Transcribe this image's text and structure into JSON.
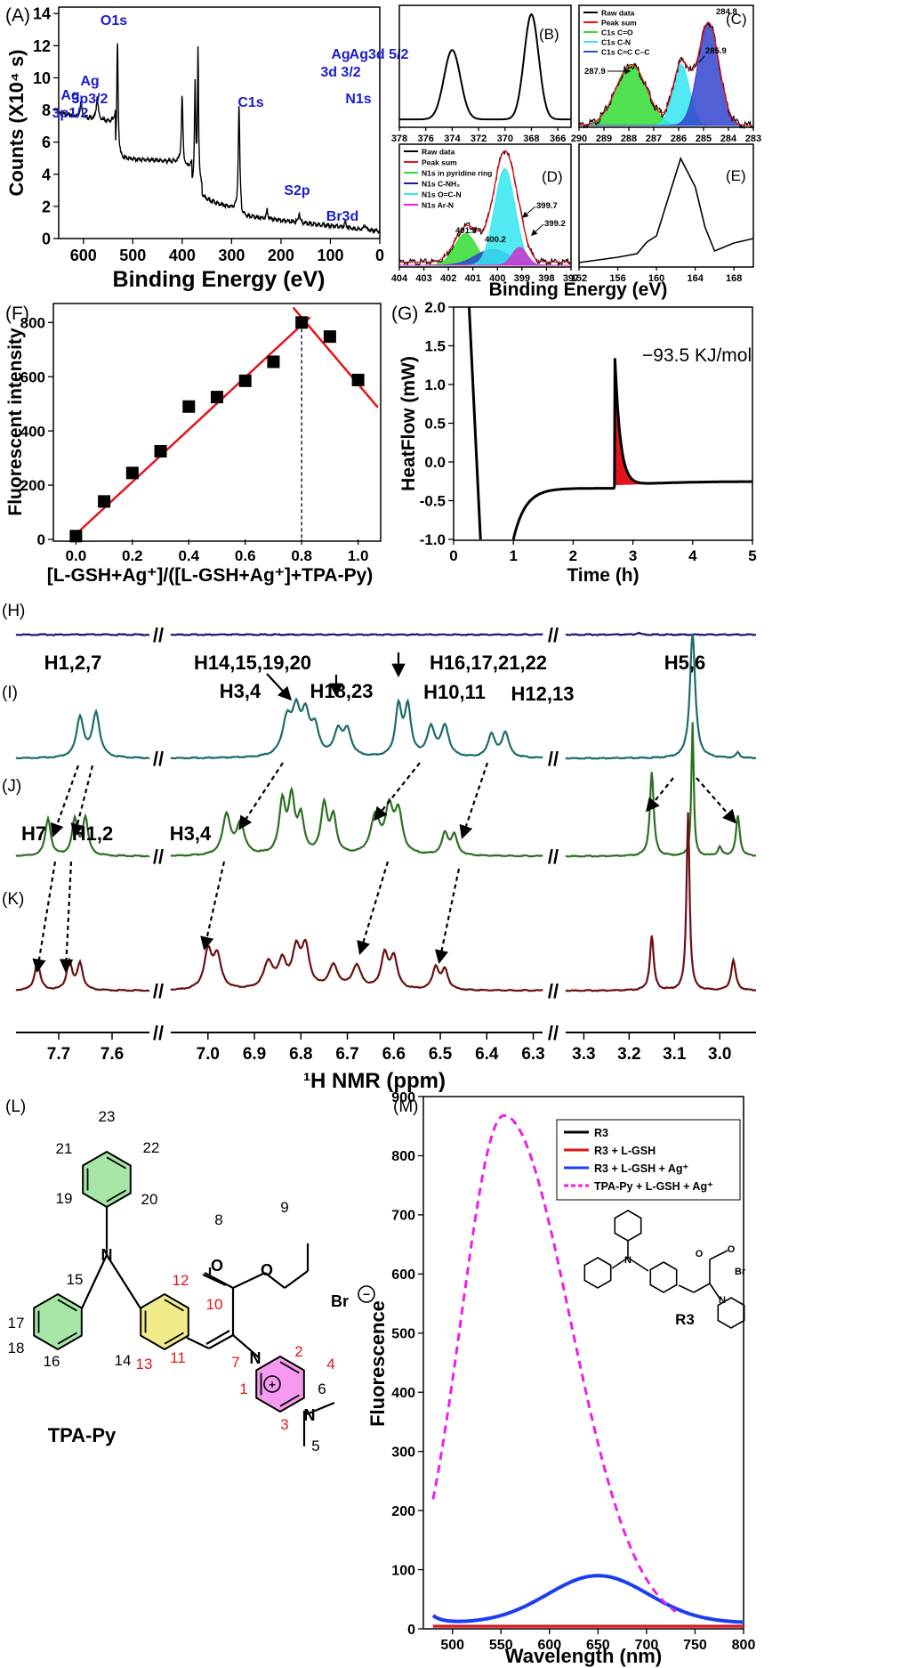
{
  "panel_labels": {
    "A": "(A)",
    "B": "(B)",
    "C": "(C)",
    "D": "(D)",
    "E": "(E)",
    "F": "(F)",
    "G": "(G)",
    "H": "(H)",
    "I": "(I)",
    "J": "(J)",
    "K": "(K)",
    "L": "(L)",
    "M": "(M)"
  },
  "colors": {
    "blue_label": "#1c1ccc",
    "red": "#e3141b",
    "teal": "#1d6b6b",
    "green": "#2c6f22",
    "maroon": "#6b0f12",
    "navy": "#1a1a70",
    "magenta": "#ee1ee8",
    "c_green": "#33dd33",
    "c_cyan": "#33e6f0",
    "c_blue": "#3344cc"
  },
  "chart_data": [
    {
      "id": "A",
      "type": "line",
      "xlabel": "Binding Energy (eV)",
      "ylabel": "Counts (X10⁴ s)",
      "xlim": [
        650,
        0
      ],
      "ylim": [
        0,
        14.4
      ],
      "x_ticks": [
        "600",
        "500",
        "400",
        "300",
        "200",
        "100",
        "0"
      ],
      "y_ticks": [
        "0",
        "2",
        "4",
        "6",
        "8",
        "10",
        "12",
        "14"
      ],
      "peaks": [
        {
          "label_lines": [
            "Ag",
            "3p1/2"
          ],
          "x": 605,
          "y": 7.6
        },
        {
          "label_lines": [
            "Ag",
            "3p3/2"
          ],
          "x": 572,
          "y": 8.6
        },
        {
          "label_lines": [
            "O1s"
          ],
          "x": 531,
          "y": 14.1
        },
        {
          "label_lines": [
            "N1s"
          ],
          "x": 400,
          "y": 9.2
        },
        {
          "label_lines": [
            "Ag",
            "3d 3/2"
          ],
          "x": 374,
          "y": 10.4
        },
        {
          "label_lines": [
            "Ag3d 5/2"
          ],
          "x": 368,
          "y": 12.1
        },
        {
          "label_lines": [
            "C1s"
          ],
          "x": 285,
          "y": 8.0
        },
        {
          "label_lines": [
            "S2p"
          ],
          "x": 163,
          "y": 1.9
        },
        {
          "label_lines": [
            "Br3d"
          ],
          "x": 68,
          "y": 1.0
        }
      ]
    },
    {
      "id": "B",
      "type": "line",
      "xlim": [
        378,
        365
      ],
      "x_ticks": [
        "378",
        "376",
        "374",
        "372",
        "370",
        "368",
        "366"
      ],
      "peak_positions": [
        374.0,
        368.0
      ]
    },
    {
      "id": "C",
      "type": "area",
      "xlim": [
        290,
        283
      ],
      "x_ticks": [
        "290",
        "289",
        "288",
        "287",
        "286",
        "285",
        "284",
        "283"
      ],
      "legend": [
        "Raw data",
        "Peak sum",
        "C1s  C=O",
        "C1s  C-N",
        "C1s  C=C C–C"
      ],
      "components": [
        {
          "center": 287.9,
          "label": "287.9"
        },
        {
          "center": 285.9,
          "label": "285.9"
        },
        {
          "center": 284.8,
          "label": "284.8"
        }
      ]
    },
    {
      "id": "D",
      "type": "area",
      "xlim": [
        404,
        397
      ],
      "x_ticks": [
        "404",
        "403",
        "402",
        "401",
        "400",
        "399",
        "398",
        "397"
      ],
      "legend": [
        "Raw data",
        "Peak sum",
        "N1s  in pyridine ring",
        "N1s C-NH₂",
        "N1s O=C-N",
        "N1s Ar-N"
      ],
      "components": [
        {
          "center": 401.3,
          "label": "401.3"
        },
        {
          "center": 400.2,
          "label": "400.2"
        },
        {
          "center": 399.7,
          "label": "399.7"
        },
        {
          "center": 399.2,
          "label": "399.2"
        }
      ]
    },
    {
      "id": "E",
      "type": "line",
      "xlim": [
        152,
        170
      ],
      "x_ticks": [
        "152",
        "156",
        "160",
        "164",
        "168"
      ],
      "peak_position": 162.5
    },
    {
      "id": "DE_shared_xlabel",
      "xlabel": "Binding Energy (eV)"
    },
    {
      "id": "F",
      "type": "scatter",
      "xlabel": "[L-GSH+Ag⁺]/([L-GSH+Ag⁺]+TPA-Py)",
      "ylabel": "Fluorescent intensity",
      "xlim": [
        -0.08,
        1.08
      ],
      "ylim": [
        0,
        870
      ],
      "x_ticks": [
        "0.0",
        "0.2",
        "0.4",
        "0.6",
        "0.8",
        "1.0"
      ],
      "y_ticks": [
        "0",
        "200",
        "400",
        "600",
        "800"
      ],
      "x": [
        0.0,
        0.1,
        0.2,
        0.3,
        0.4,
        0.5,
        0.6,
        0.7,
        0.8,
        0.9,
        1.0
      ],
      "y": [
        12,
        140,
        245,
        325,
        490,
        525,
        585,
        655,
        800,
        748,
        588
      ],
      "fit_line_1": [
        [
          -0.02,
          0
        ],
        [
          0.83,
          820
        ]
      ],
      "fit_line_2": [
        [
          0.77,
          855
        ],
        [
          1.07,
          487
        ]
      ],
      "dashed_x": 0.8
    },
    {
      "id": "G",
      "type": "line",
      "xlabel": "Time (h)",
      "ylabel": "HeatFlow (mW)",
      "xlim": [
        0,
        5
      ],
      "ylim": [
        -1.0,
        2.0
      ],
      "x_ticks": [
        "0",
        "1",
        "2",
        "3",
        "4",
        "5"
      ],
      "y_ticks": [
        "-1.0",
        "-0.5",
        "0.0",
        "0.5",
        "1.0",
        "1.5",
        "2.0"
      ],
      "annotation": "−93.5 KJ/mol",
      "peak": {
        "x": 2.7,
        "y": 1.4
      }
    },
    {
      "id": "NMR",
      "type": "line",
      "xlabel": "¹H NMR (ppm)",
      "axis_ticks": [
        "7.7",
        "7.6",
        "7.0",
        "6.9",
        "6.8",
        "6.7",
        "6.6",
        "6.5",
        "6.4",
        "6.3",
        "3.3",
        "3.2",
        "3.1",
        "3.0"
      ],
      "labels_I": [
        "H1,2,7",
        "H14,15,19,20",
        "H3,4",
        "H18,23",
        "H16,17,21,22",
        "H10,11",
        "H12,13",
        "H5,6"
      ],
      "labels_J": [
        "H7",
        "H1,2",
        "H3,4"
      ],
      "break_symbol": "//"
    },
    {
      "id": "M",
      "type": "line",
      "xlabel": "Wavelength (nm)",
      "ylabel": "Fluorescence",
      "xlim": [
        470,
        800
      ],
      "ylim": [
        0,
        900
      ],
      "x_ticks": [
        "500",
        "550",
        "600",
        "650",
        "700",
        "750",
        "800"
      ],
      "y_ticks": [
        "0",
        "100",
        "200",
        "300",
        "400",
        "500",
        "600",
        "700",
        "800",
        "900"
      ],
      "series": [
        {
          "name": "R3"
        },
        {
          "name": "R3 + L-GSH"
        },
        {
          "name": "R3 + L-GSH + Ag⁺",
          "peak": {
            "x": 650,
            "y": 88
          }
        },
        {
          "name": "TPA-Py + L-GSH + Ag⁺",
          "peak": {
            "x": 553,
            "y": 868
          }
        }
      ],
      "inset_label": "R3"
    }
  ],
  "structure_L": {
    "name": "TPA-Py",
    "counter_ion": "Br",
    "numbers_black": [
      "23",
      "22",
      "21",
      "19",
      "20",
      "15",
      "17",
      "18",
      "16",
      "14",
      "8",
      "9",
      "6",
      "5"
    ],
    "numbers_red": [
      "12",
      "10",
      "13",
      "11",
      "7",
      "2",
      "4",
      "1",
      "3"
    ]
  }
}
